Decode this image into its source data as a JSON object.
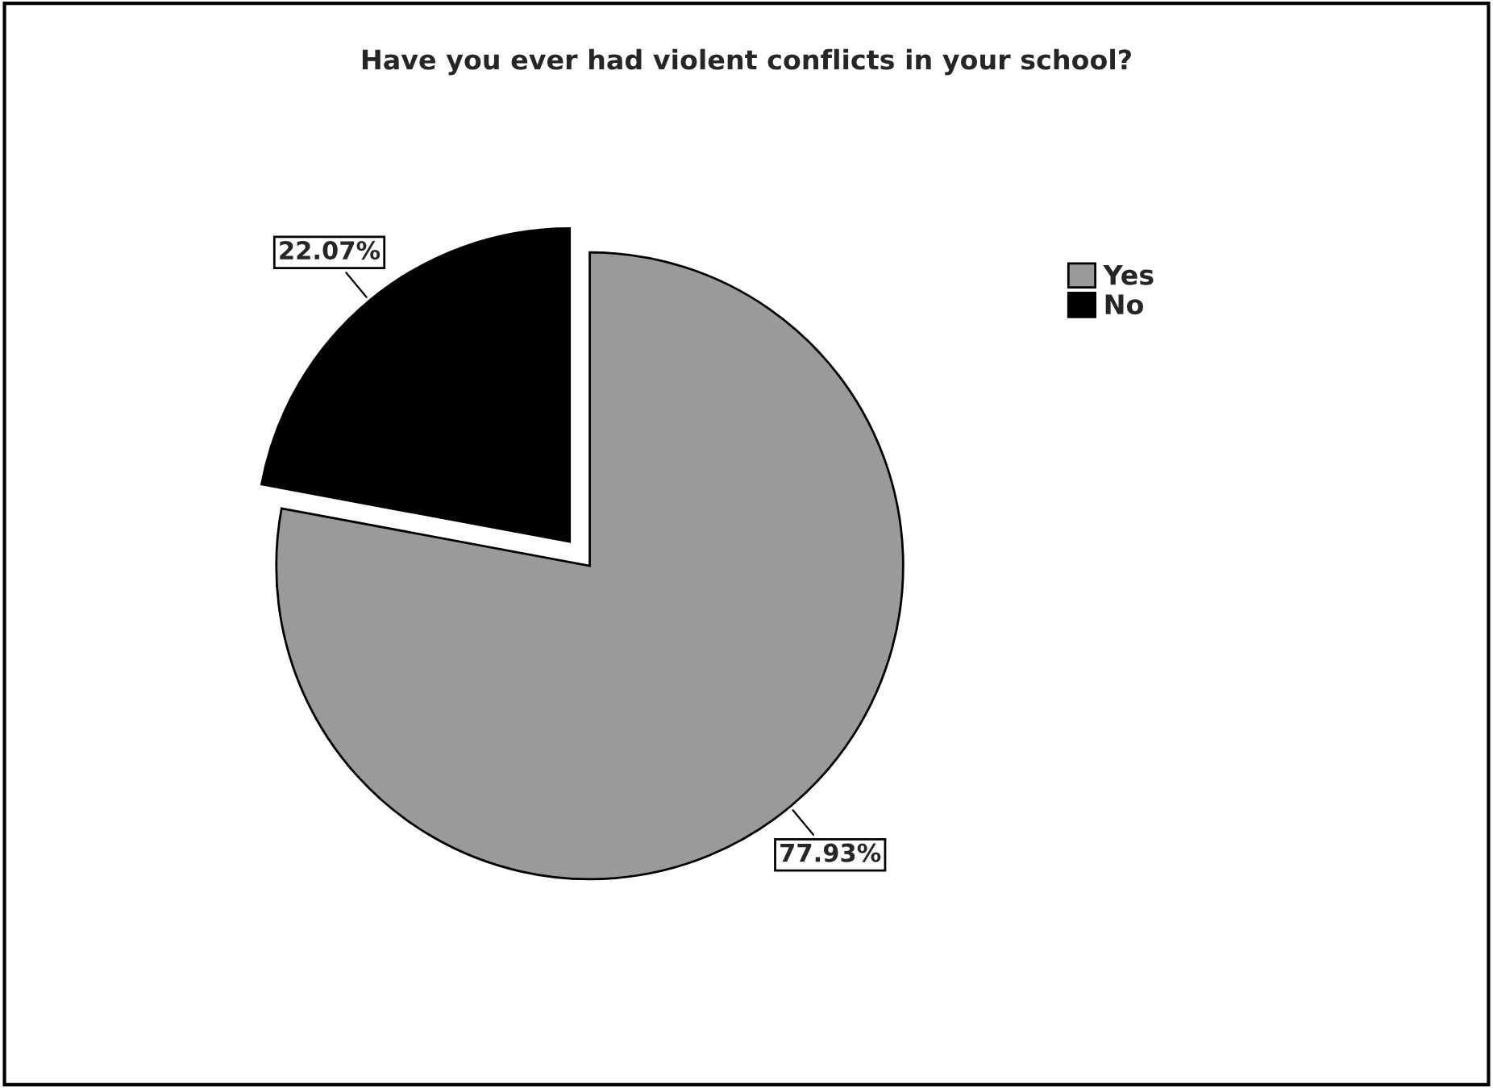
{
  "chart_data": {
    "type": "pie",
    "title": "Have you ever had violent conflicts in your school?",
    "categories": [
      "Yes",
      "No"
    ],
    "values": [
      77.93,
      22.07
    ],
    "value_labels": [
      "77.93%",
      "22.07%"
    ],
    "colors": [
      "#9a9a9a",
      "#000000"
    ],
    "legend": "right"
  }
}
